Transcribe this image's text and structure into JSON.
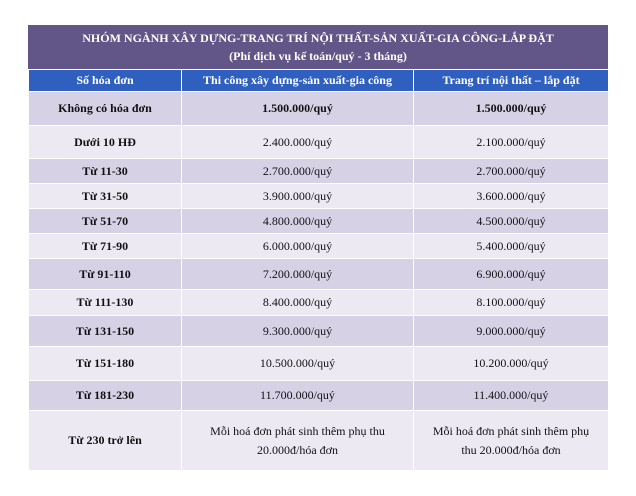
{
  "title": {
    "line1": "NHÓM NGÀNH XÂY DỰNG-TRANG TRÍ NỘI THẤT-SẢN XUẤT-GIA CÔNG-LẮP ĐẶT",
    "line2": "(Phí dịch vụ kế toán/quý - 3 tháng)"
  },
  "headers": [
    "Số hóa đơn",
    "Thi công xây dựng-sản xuất-gia công",
    "Trang trí nội thất – lắp đặt"
  ],
  "rows": [
    {
      "label": "Không có hóa đơn",
      "col1": "1.500.000/quý",
      "col2": "1.500.000/quý"
    },
    {
      "label": "Dưới 10 HĐ",
      "col1": "2.400.000/quý",
      "col2": "2.100.000/quý"
    },
    {
      "label": "Từ 11-30",
      "col1": "2.700.000/quý",
      "col2": "2.700.000/quý"
    },
    {
      "label": "Từ 31-50",
      "col1": "3.900.000/quý",
      "col2": "3.600.000/quý"
    },
    {
      "label": "Từ 51-70",
      "col1": "4.800.000/quý",
      "col2": "4.500.000/quý"
    },
    {
      "label": "Từ 71-90",
      "col1": "6.000.000/quý",
      "col2": "5.400.000/quý"
    },
    {
      "label": "Từ 91-110",
      "col1": "7.200.000/quý",
      "col2": "6.900.000/quý"
    },
    {
      "label": "Từ 111-130",
      "col1": "8.400.000/quý",
      "col2": "8.100.000/quý"
    },
    {
      "label": "Từ 131-150",
      "col1": "9.300.000/quý",
      "col2": "9.000.000/quý"
    },
    {
      "label": "Từ 151-180",
      "col1": "10.500.000/quý",
      "col2": "10.200.000/quý"
    },
    {
      "label": "Từ 181-230",
      "col1": "11.700.000/quý",
      "col2": "11.400.000/quý"
    },
    {
      "label": "Từ 230 trở lên",
      "col1_line1": "Mỗi hoá đơn phát sinh thêm phụ thu",
      "col1_line2": "20.000đ/hóa đơn",
      "col2_line1": "Mỗi hoá đơn phát sinh thêm phụ",
      "col2_line2": "thu 20.000đ/hóa đơn"
    }
  ],
  "colors": {
    "title_bg": "#625587",
    "header_bg": "#2f5fbf",
    "row_dark": "#d7d1e6",
    "row_light": "#ece9f3"
  }
}
